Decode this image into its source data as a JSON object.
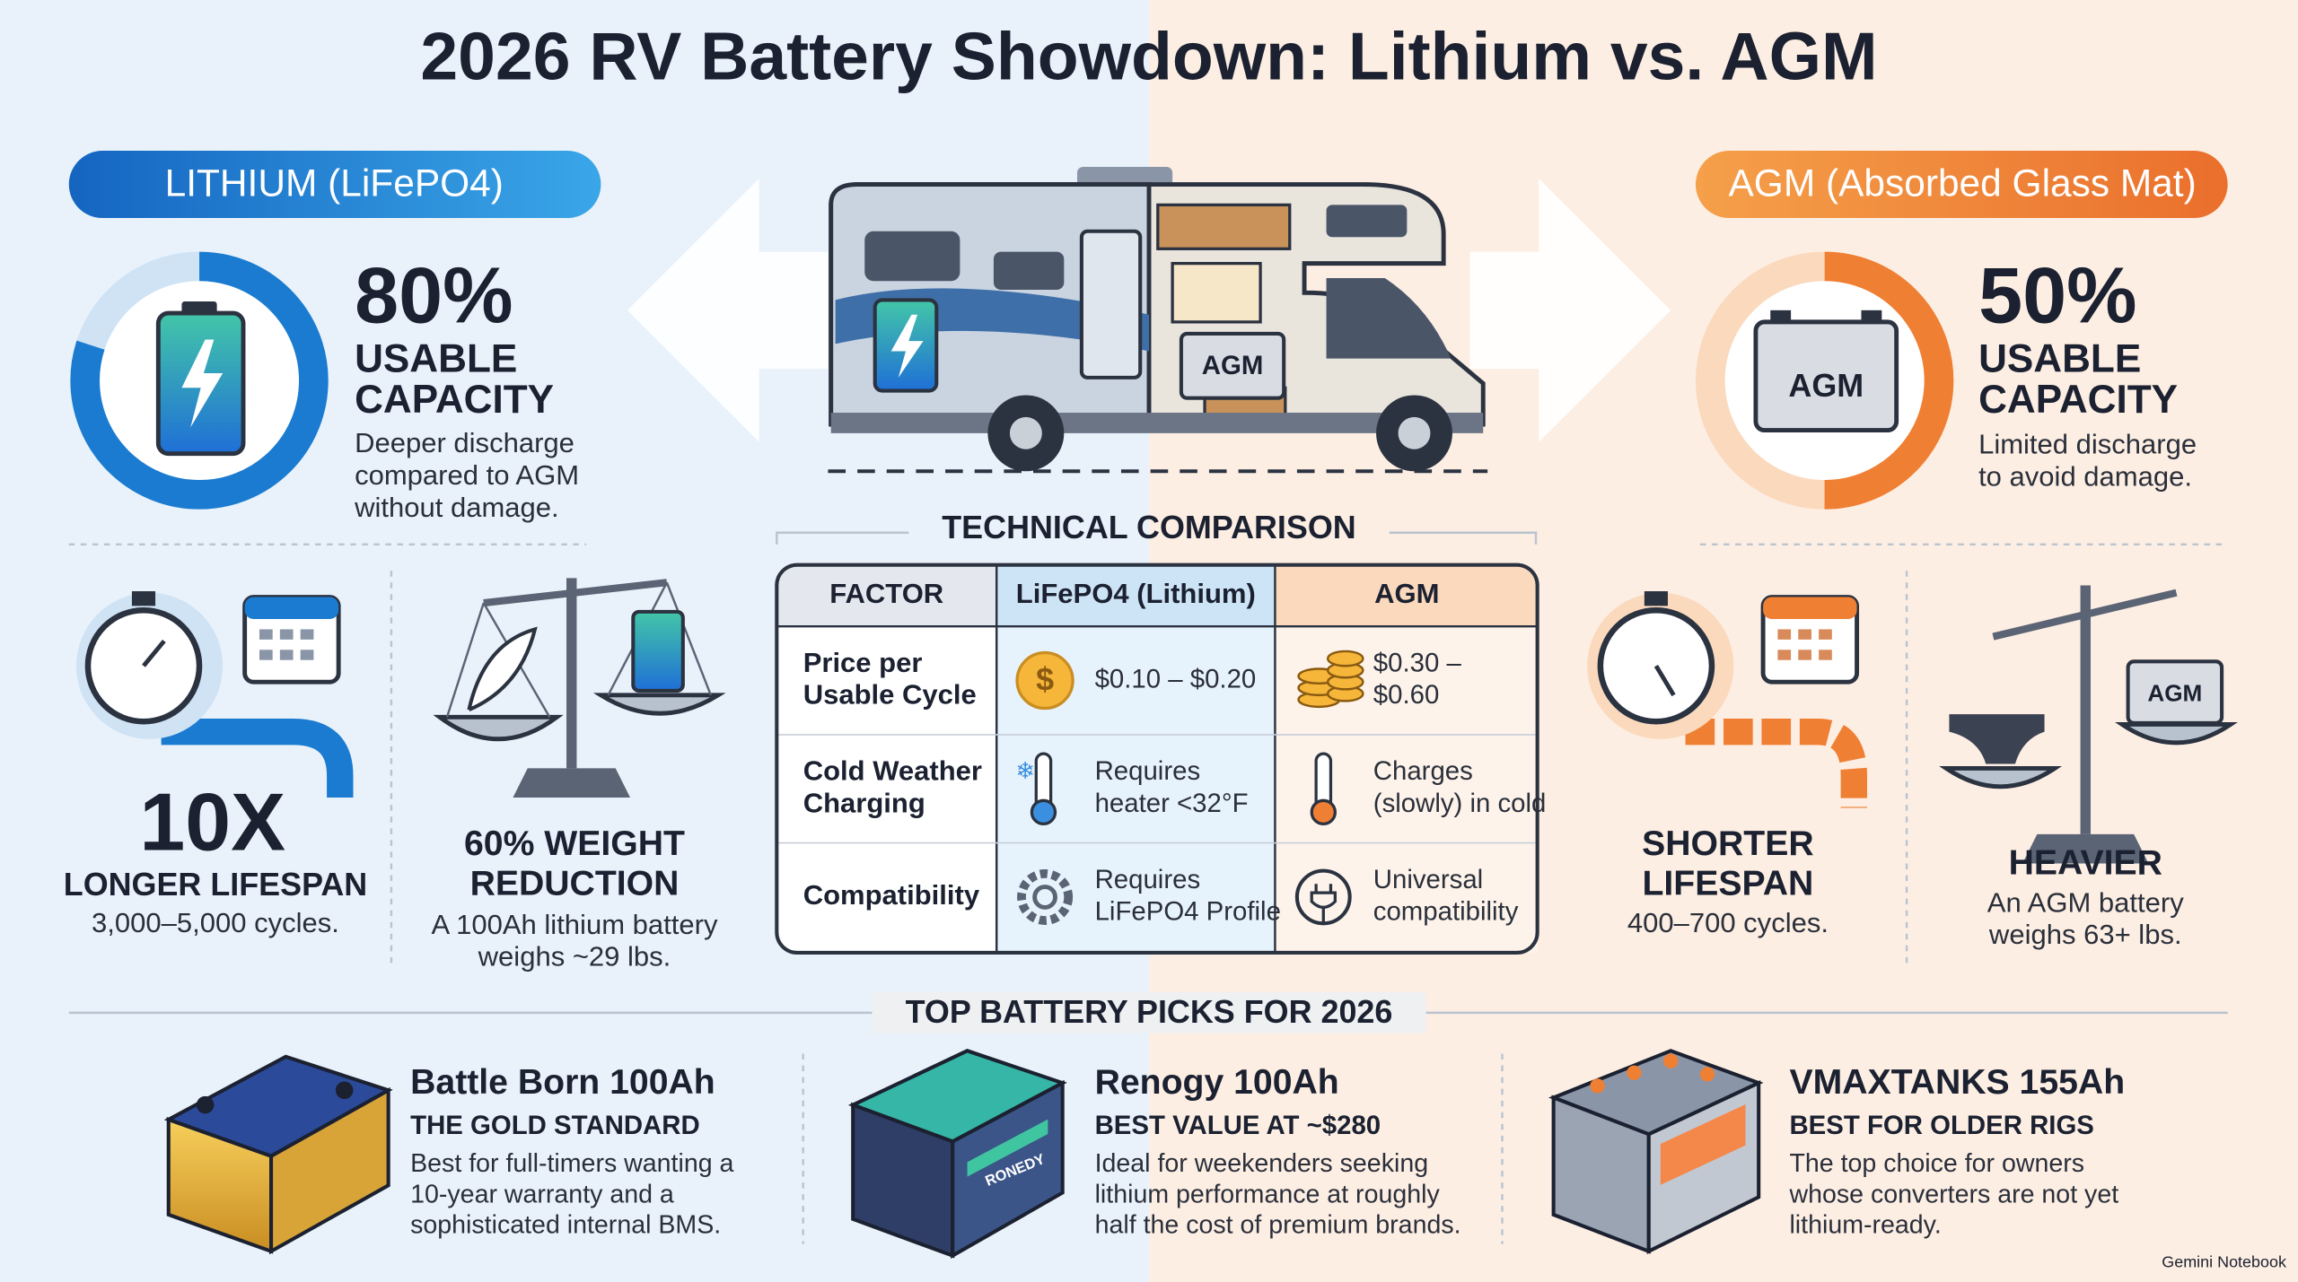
{
  "title": "2026 RV Battery Showdown: Lithium vs. AGM",
  "lithium": {
    "badge": "LITHIUM (LiFePO4)",
    "stat": "80%",
    "stat_label": [
      "USABLE",
      "CAPACITY"
    ],
    "description": [
      "Deeper discharge",
      "compared to AGM",
      "without damage."
    ],
    "lifespan": {
      "stat": "10X",
      "label": "LONGER LIFESPAN",
      "detail": "3,000–5,000 cycles."
    },
    "weight": {
      "label": [
        "60% WEIGHT",
        "REDUCTION"
      ],
      "detail": [
        "A 100Ah lithium battery",
        "weighs ~29 lbs."
      ]
    }
  },
  "agm": {
    "badge": "AGM (Absorbed Glass Mat)",
    "stat": "50%",
    "stat_label": [
      "USABLE",
      "CAPACITY"
    ],
    "description": [
      "Limited discharge",
      "to avoid damage."
    ],
    "icon_label": "AGM",
    "lifespan": {
      "label": [
        "SHORTER",
        "LIFESPAN"
      ],
      "detail": "400–700 cycles."
    },
    "weight": {
      "label": "HEAVIER",
      "detail": [
        "An AGM battery",
        "weighs 63+ lbs."
      ],
      "icon_label": "AGM"
    }
  },
  "rv": {
    "battery_label": "AGM"
  },
  "comparison": {
    "title": "TECHNICAL COMPARISON",
    "columns": [
      "FACTOR",
      "LiFePO4 (Lithium)",
      "AGM"
    ],
    "coin_symbol": "$",
    "rows": [
      [
        [
          "Price per",
          "Usable Cycle"
        ],
        [
          "$0.10 – $0.20"
        ],
        [
          "$0.30 –",
          "$0.60"
        ]
      ],
      [
        [
          "Cold Weather",
          "Charging"
        ],
        [
          "Requires",
          "heater <32°F"
        ],
        [
          "Charges",
          "(slowly) in cold"
        ]
      ],
      [
        [
          "Compatibility"
        ],
        [
          "Requires",
          "LiFePO4 Profile"
        ],
        [
          "Universal",
          "compatibility"
        ]
      ]
    ]
  },
  "picks": {
    "title": "TOP BATTERY PICKS FOR 2026",
    "items": [
      {
        "name": "Battle Born 100Ah",
        "tagline": "THE GOLD STANDARD",
        "description": [
          "Best for full-timers wanting a",
          "10-year warranty and a",
          "sophisticated internal BMS."
        ]
      },
      {
        "name": "Renogy 100Ah",
        "tagline": "BEST VALUE AT ~$280",
        "description": [
          "Ideal for weekenders seeking",
          "lithium performance at roughly",
          "half the cost of premium brands."
        ],
        "image_label": "RONEDY"
      },
      {
        "name": "VMAXTANKS 155Ah",
        "tagline": "BEST FOR OLDER RIGS",
        "description": [
          "The top choice for owners",
          "whose converters are not yet",
          "lithium-ready."
        ]
      }
    ]
  },
  "footer": "Gemini Notebook"
}
